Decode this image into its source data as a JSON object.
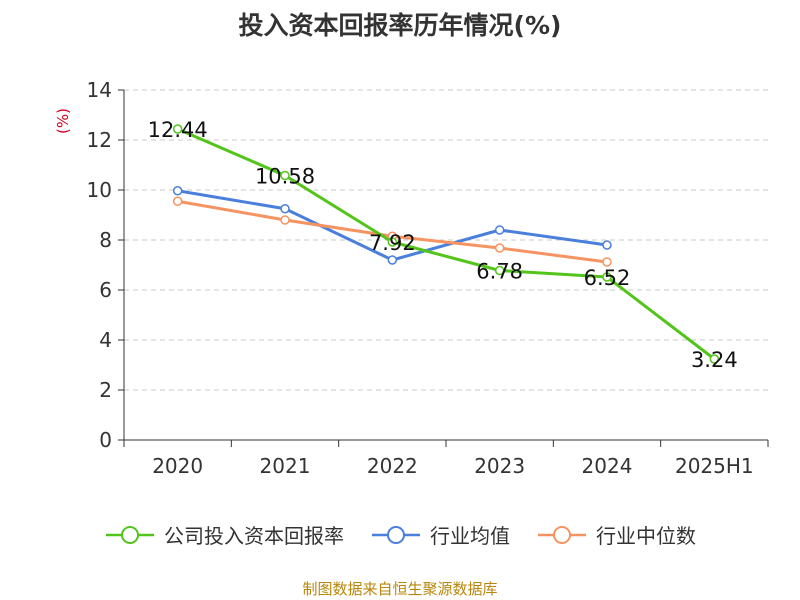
{
  "title": "投入资本回报率历年情况(%)",
  "unit_label": "(%)",
  "source": "制图数据来自恒生聚源数据库",
  "chart_data": {
    "type": "line",
    "categories": [
      "2020",
      "2021",
      "2022",
      "2023",
      "2024",
      "2025H1"
    ],
    "ylim": [
      0,
      14
    ],
    "yticks": [
      0,
      2,
      4,
      6,
      8,
      10,
      12,
      14
    ],
    "grid": true,
    "legend_position": "bottom",
    "series": [
      {
        "name": "公司投入资本回报率",
        "color": "#52c41a",
        "values": [
          12.44,
          10.58,
          7.92,
          6.78,
          6.52,
          3.24
        ],
        "labels": true
      },
      {
        "name": "行业均值",
        "color": "#4a7fdc",
        "values": [
          9.97,
          9.25,
          7.2,
          8.4,
          7.8,
          null
        ],
        "labels": false
      },
      {
        "name": "行业中位数",
        "color": "#f59462",
        "values": [
          9.55,
          8.8,
          8.15,
          7.68,
          7.12,
          null
        ],
        "labels": false
      }
    ]
  }
}
